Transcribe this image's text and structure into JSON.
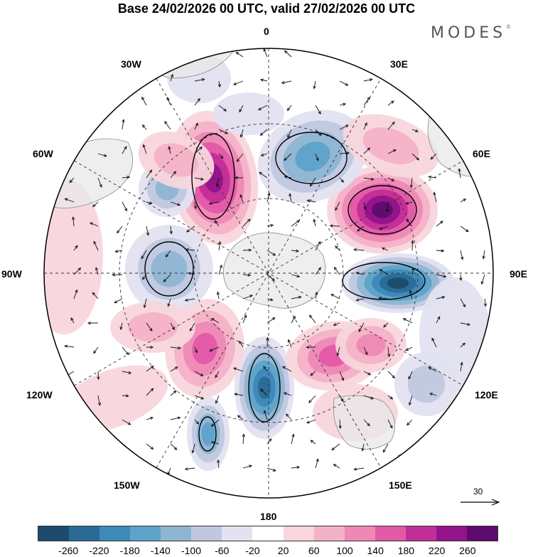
{
  "title": "Base 24/02/2026 00 UTC, valid 27/02/2026 00 UTC",
  "brand": "MODES",
  "brand_mark": "©",
  "labels": {
    "lon_0": "0",
    "lon_30e": "30E",
    "lon_30w": "30W",
    "lon_60e": "60E",
    "lon_60w": "60W",
    "lon_90e": "90E",
    "lon_90w": "90W",
    "lon_120e": "120E",
    "lon_120w": "120W",
    "lon_150e": "150E",
    "lon_150w": "150W",
    "lon_180": "180"
  },
  "reference_vector": {
    "label": "30"
  },
  "colorbar": {
    "colors": [
      "#1d4b6d",
      "#2a6b96",
      "#3d89b8",
      "#5da2c9",
      "#8fb5d3",
      "#c0c8e0",
      "#e3e2f0",
      "#ffffff",
      "#f8d6dc",
      "#f4b2c7",
      "#ee89b6",
      "#e259a8",
      "#c22e97",
      "#93138a",
      "#5e0b6f"
    ],
    "ticks": [
      "-260",
      "-220",
      "-180",
      "-140",
      "-100",
      "-60",
      "-20",
      "20",
      "60",
      "100",
      "140",
      "180",
      "220",
      "260"
    ]
  },
  "colors": {
    "land": "#e8e8e8",
    "coast": "#8a8a8a",
    "grid": "#333333",
    "vector": "#111111"
  }
}
